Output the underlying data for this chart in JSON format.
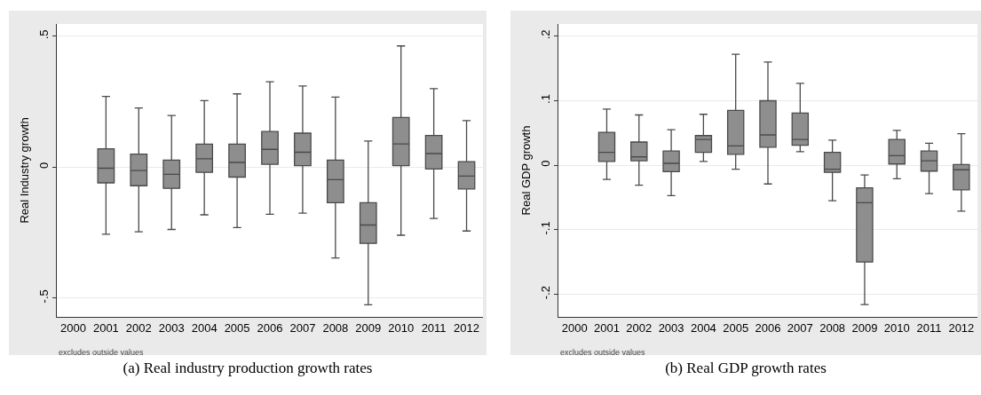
{
  "chart_data": [
    {
      "type": "box",
      "ylabel": "Real Industry growth",
      "categories": [
        "2000",
        "2001",
        "2002",
        "2003",
        "2004",
        "2005",
        "2006",
        "2007",
        "2008",
        "2009",
        "2010",
        "2011",
        "2012"
      ],
      "boxes": [
        null,
        {
          "low": -0.256,
          "q1": -0.06,
          "median": -0.004,
          "q3": 0.07,
          "high": 0.27
        },
        {
          "low": -0.247,
          "q1": -0.071,
          "median": -0.013,
          "q3": 0.05,
          "high": 0.226
        },
        {
          "low": -0.238,
          "q1": -0.081,
          "median": -0.027,
          "q3": 0.027,
          "high": 0.197
        },
        {
          "low": -0.182,
          "q1": -0.02,
          "median": 0.032,
          "q3": 0.088,
          "high": 0.254
        },
        {
          "low": -0.231,
          "q1": -0.038,
          "median": 0.018,
          "q3": 0.088,
          "high": 0.28
        },
        {
          "low": -0.18,
          "q1": 0.011,
          "median": 0.068,
          "q3": 0.136,
          "high": 0.326
        },
        {
          "low": -0.176,
          "q1": 0.006,
          "median": 0.057,
          "q3": 0.13,
          "high": 0.31
        },
        {
          "low": -0.347,
          "q1": -0.136,
          "median": -0.048,
          "q3": 0.027,
          "high": 0.268
        },
        {
          "low": -0.526,
          "q1": -0.291,
          "median": -0.221,
          "q3": -0.136,
          "high": 0.1
        },
        {
          "low": -0.26,
          "q1": 0.006,
          "median": 0.089,
          "q3": 0.19,
          "high": 0.463
        },
        {
          "low": -0.196,
          "q1": -0.007,
          "median": 0.052,
          "q3": 0.121,
          "high": 0.3
        },
        {
          "low": -0.244,
          "q1": -0.083,
          "median": -0.034,
          "q3": 0.021,
          "high": 0.178
        }
      ],
      "color": "#8e8e8e",
      "ylim": [
        -0.572,
        0.547
      ],
      "yticks": [
        {
          "value": -0.5,
          "label": "-.5"
        },
        0,
        {
          "value": 0.5,
          "label": ".5"
        }
      ],
      "grid": "y",
      "annotations": [
        "excludes outside values",
        "(a) Real industry production growth rates"
      ]
    },
    {
      "type": "box",
      "ylabel": "Real GDP growth",
      "categories": [
        "2000",
        "2001",
        "2002",
        "2003",
        "2004",
        "2005",
        "2006",
        "2007",
        "2008",
        "2009",
        "2010",
        "2011",
        "2012"
      ],
      "boxes": [
        null,
        {
          "low": -0.022,
          "q1": 0.006,
          "median": 0.02,
          "q3": 0.051,
          "high": 0.087
        },
        {
          "low": -0.031,
          "q1": 0.007,
          "median": 0.013,
          "q3": 0.036,
          "high": 0.078
        },
        {
          "low": -0.047,
          "q1": -0.01,
          "median": 0.003,
          "q3": 0.022,
          "high": 0.055
        },
        {
          "low": 0.006,
          "q1": 0.02,
          "median": 0.04,
          "q3": 0.046,
          "high": 0.079
        },
        {
          "low": -0.006,
          "q1": 0.017,
          "median": 0.03,
          "q3": 0.085,
          "high": 0.172
        },
        {
          "low": -0.029,
          "q1": 0.028,
          "median": 0.047,
          "q3": 0.1,
          "high": 0.16
        },
        {
          "low": 0.021,
          "q1": 0.031,
          "median": 0.04,
          "q3": 0.081,
          "high": 0.127
        },
        {
          "low": -0.055,
          "q1": -0.011,
          "median": -0.006,
          "q3": 0.02,
          "high": 0.039
        },
        {
          "low": -0.216,
          "q1": -0.15,
          "median": -0.058,
          "q3": -0.035,
          "high": -0.015
        },
        {
          "low": -0.021,
          "q1": 0.002,
          "median": 0.015,
          "q3": 0.04,
          "high": 0.054
        },
        {
          "low": -0.044,
          "q1": -0.009,
          "median": 0.007,
          "q3": 0.022,
          "high": 0.034
        },
        {
          "low": -0.071,
          "q1": -0.038,
          "median": -0.007,
          "q3": 0.001,
          "high": 0.049
        }
      ],
      "color": "#8e8e8e",
      "ylim": [
        -0.235,
        0.219
      ],
      "yticks": [
        {
          "value": -0.2,
          "label": "-.2"
        },
        {
          "value": -0.1,
          "label": "-.1"
        },
        0,
        {
          "value": 0.1,
          "label": ".1"
        },
        {
          "value": 0.2,
          "label": ".2"
        }
      ],
      "grid": "y",
      "annotations": [
        "excludes outside values",
        "(b) Real GDP growth rates"
      ]
    }
  ]
}
